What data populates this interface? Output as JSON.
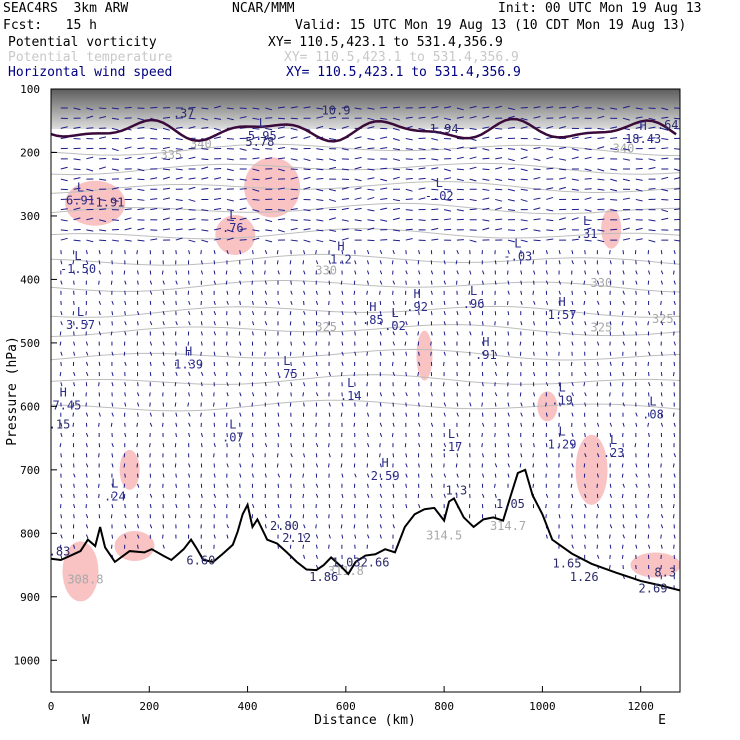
{
  "header": {
    "model": "SEAC4RS  3km ARW",
    "org": "NCAR/MMM",
    "init": "Init: 00 UTC Mon 19 Aug 13",
    "fcst": "Fcst:   15 h",
    "valid": "Valid: 15 UTC Mon 19 Aug 13 (10 CDT Mon 19 Aug 13)",
    "fields": [
      {
        "name": "Potential vorticity",
        "xy": "XY= 110.5,423.1 to 531.4,356.9",
        "color": "#000000"
      },
      {
        "name": "Potential temperature",
        "xy": "XY= 110.5,423.1 to 531.4,356.9",
        "color": "#c8c8c8"
      },
      {
        "name": "Horizontal wind speed",
        "xy": "XY= 110.5,423.1 to 531.4,356.9",
        "color": "#000080"
      }
    ]
  },
  "chart_data": {
    "type": "cross-section",
    "xlabel": "Distance (km)",
    "ylabel": "Pressure (hPa)",
    "xlim": [
      0,
      1280
    ],
    "ylim": [
      1050,
      100
    ],
    "x_ticks": [
      "0",
      "200",
      "400",
      "600",
      "800",
      "1000",
      "1200"
    ],
    "y_ticks": [
      "100",
      "200",
      "300",
      "400",
      "500",
      "600",
      "700",
      "800",
      "900",
      "1000"
    ],
    "x_end_labels": {
      "left": "W",
      "right": "E"
    },
    "theta_contours": [
      {
        "label": "340",
        "x": 305,
        "p": 193
      },
      {
        "label": "340",
        "x": 1165,
        "p": 200
      },
      {
        "label": "335",
        "x": 245,
        "p": 210
      },
      {
        "label": "330",
        "x": 560,
        "p": 392
      },
      {
        "label": "330",
        "x": 1120,
        "p": 412
      },
      {
        "label": "325",
        "x": 560,
        "p": 481
      },
      {
        "label": "325",
        "x": 1120,
        "p": 482
      },
      {
        "label": "325",
        "x": 1245,
        "p": 469
      },
      {
        "label": "314.5",
        "x": 800,
        "p": 810
      },
      {
        "label": "314.7",
        "x": 930,
        "p": 795
      },
      {
        "label": "311.8",
        "x": 600,
        "p": 866
      },
      {
        "label": "308.8",
        "x": 70,
        "p": 879
      }
    ],
    "terrain": [
      [
        0,
        840
      ],
      [
        20,
        842
      ],
      [
        40,
        835
      ],
      [
        60,
        828
      ],
      [
        75,
        810
      ],
      [
        90,
        820
      ],
      [
        100,
        790
      ],
      [
        110,
        822
      ],
      [
        130,
        845
      ],
      [
        160,
        828
      ],
      [
        190,
        830
      ],
      [
        205,
        825
      ],
      [
        230,
        836
      ],
      [
        245,
        842
      ],
      [
        270,
        825
      ],
      [
        285,
        810
      ],
      [
        295,
        822
      ],
      [
        310,
        842
      ],
      [
        330,
        845
      ],
      [
        350,
        832
      ],
      [
        370,
        818
      ],
      [
        380,
        797
      ],
      [
        390,
        770
      ],
      [
        400,
        755
      ],
      [
        410,
        790
      ],
      [
        420,
        778
      ],
      [
        440,
        810
      ],
      [
        460,
        816
      ],
      [
        480,
        830
      ],
      [
        500,
        845
      ],
      [
        520,
        857
      ],
      [
        540,
        858
      ],
      [
        555,
        850
      ],
      [
        570,
        838
      ],
      [
        590,
        852
      ],
      [
        605,
        864
      ],
      [
        620,
        845
      ],
      [
        640,
        835
      ],
      [
        660,
        833
      ],
      [
        680,
        825
      ],
      [
        700,
        830
      ],
      [
        720,
        790
      ],
      [
        740,
        770
      ],
      [
        760,
        762
      ],
      [
        780,
        760
      ],
      [
        800,
        780
      ],
      [
        810,
        750
      ],
      [
        820,
        745
      ],
      [
        840,
        775
      ],
      [
        860,
        790
      ],
      [
        880,
        778
      ],
      [
        900,
        775
      ],
      [
        920,
        780
      ],
      [
        935,
        742
      ],
      [
        950,
        705
      ],
      [
        965,
        700
      ],
      [
        980,
        740
      ],
      [
        1000,
        770
      ],
      [
        1020,
        810
      ],
      [
        1060,
        832
      ],
      [
        1100,
        848
      ],
      [
        1150,
        862
      ],
      [
        1200,
        875
      ],
      [
        1240,
        882
      ],
      [
        1280,
        890
      ]
    ],
    "extremes": [
      {
        "type": "H",
        "value": "1.2",
        "x": 590,
        "p": 375
      },
      {
        "type": "H",
        "value": ".92",
        "x": 745,
        "p": 450
      },
      {
        "type": "H",
        "value": ".85",
        "x": 655,
        "p": 470
      },
      {
        "type": "H",
        "value": ".91",
        "x": 885,
        "p": 525
      },
      {
        "type": "H",
        "value": "1.39",
        "x": 280,
        "p": 540
      },
      {
        "type": "H",
        "value": "2.59",
        "x": 680,
        "p": 716
      },
      {
        "type": "H",
        "value": "1.57",
        "x": 1040,
        "p": 462
      },
      {
        "type": "H",
        "value": "18.43",
        "x": 1205,
        "p": 185
      },
      {
        "type": "H",
        "value": "17.45",
        "x": 25,
        "p": 605
      },
      {
        "type": "L",
        "value": "-.02",
        "x": 790,
        "p": 275
      },
      {
        "type": "L",
        "value": "-.03",
        "x": 950,
        "p": 370
      },
      {
        "type": "L",
        "value": ".96",
        "x": 860,
        "p": 445
      },
      {
        "type": "L",
        "value": ".02",
        "x": 700,
        "p": 480
      },
      {
        "type": "L",
        "value": ".75",
        "x": 480,
        "p": 555
      },
      {
        "type": "L",
        "value": ".14",
        "x": 610,
        "p": 590
      },
      {
        "type": "L",
        "value": ".76",
        "x": 370,
        "p": 325
      },
      {
        "type": "L",
        "value": "5.95",
        "x": 430,
        "p": 180
      },
      {
        "type": "L",
        "value": "6.91",
        "x": 60,
        "p": 282
      },
      {
        "type": "L",
        "value": "-1.50",
        "x": 55,
        "p": 390
      },
      {
        "type": "L",
        "value": "3.57",
        "x": 60,
        "p": 478
      },
      {
        "type": "L",
        "value": ".07",
        "x": 370,
        "p": 655
      },
      {
        "type": "L",
        "value": ".17",
        "x": 815,
        "p": 670
      },
      {
        "type": "L",
        "value": "1.29",
        "x": 1040,
        "p": 666
      },
      {
        "type": "L",
        "value": ".23",
        "x": 1145,
        "p": 680
      },
      {
        "type": "L",
        "value": ".19",
        "x": 1040,
        "p": 597
      },
      {
        "type": "L",
        "value": ".08",
        "x": 1225,
        "p": 619
      },
      {
        "type": "L",
        "value": ".31",
        "x": 1090,
        "p": 335
      },
      {
        "type": "L",
        "value": ".24",
        "x": 130,
        "p": 748
      }
    ],
    "pv_labels": [
      {
        "text": "10.9",
        "x": 580,
        "p": 140
      },
      {
        "text": "1.94",
        "x": 800,
        "p": 169
      },
      {
        "text": ".37",
        "x": 270,
        "p": 145
      },
      {
        "text": "5.78",
        "x": 425,
        "p": 190
      },
      {
        "text": ".64",
        "x": 1255,
        "p": 163
      },
      {
        "text": "1.91",
        "x": 120,
        "p": 285
      },
      {
        "text": "4.15",
        "x": 10,
        "p": 635
      },
      {
        "text": "1.3",
        "x": 825,
        "p": 739
      },
      {
        "text": "1.05",
        "x": 935,
        "p": 760
      },
      {
        "text": "2.80",
        "x": 475,
        "p": 795
      },
      {
        "text": "2.12",
        "x": 500,
        "p": 814
      },
      {
        "text": "7.83",
        "x": 10,
        "p": 835
      },
      {
        "text": "6.60",
        "x": 305,
        "p": 849
      },
      {
        "text": "1.86",
        "x": 555,
        "p": 875
      },
      {
        "text": "1.032.66",
        "x": 630,
        "p": 852
      },
      {
        "text": "1.65",
        "x": 1050,
        "p": 854
      },
      {
        "text": "1.26",
        "x": 1085,
        "p": 875
      },
      {
        "text": "8.3",
        "x": 1250,
        "p": 868
      },
      {
        "text": "2.69",
        "x": 1225,
        "p": 893
      }
    ]
  }
}
